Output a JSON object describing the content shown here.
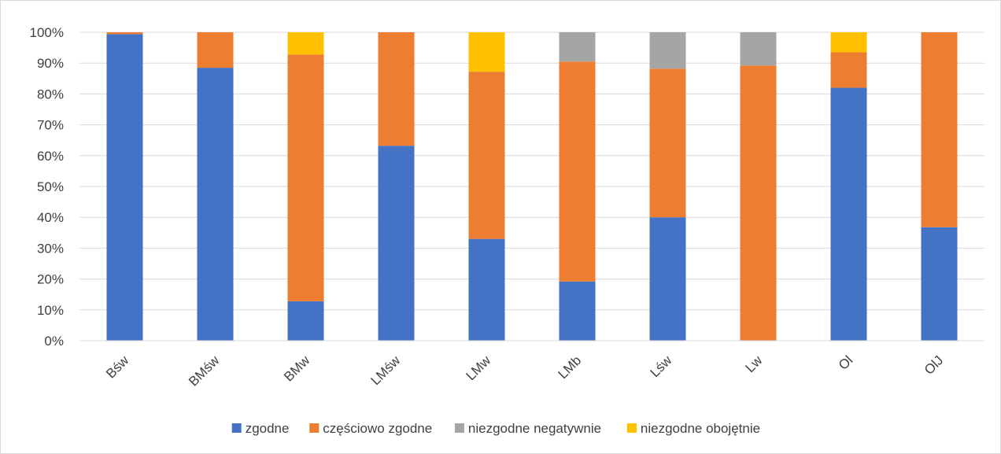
{
  "chart_data": {
    "type": "bar",
    "stacked": true,
    "normalized": true,
    "categories": [
      "Bśw",
      "BMśw",
      "BMw",
      "LMśw",
      "LMw",
      "LMb",
      "Lśw",
      "Lw",
      "Ol",
      "OlJ"
    ],
    "series": [
      {
        "name": "zgodne",
        "color": "#4472c4",
        "values": [
          0.994,
          0.885,
          0.128,
          0.632,
          0.33,
          0.192,
          0.4,
          0.0,
          0.82,
          0.368
        ]
      },
      {
        "name": "częściowo zgodne",
        "color": "#ed7d31",
        "values": [
          0.006,
          0.115,
          0.8,
          0.368,
          0.542,
          0.713,
          0.482,
          0.892,
          0.115,
          0.632
        ]
      },
      {
        "name": "niezgodne negatywnie",
        "color": "#a5a5a5",
        "values": [
          0.0,
          0.0,
          0.0,
          0.0,
          0.0,
          0.095,
          0.118,
          0.108,
          0.0,
          0.0
        ]
      },
      {
        "name": "niezgodne obojętnie",
        "color": "#ffc000",
        "values": [
          0.0,
          0.0,
          0.072,
          0.0,
          0.128,
          0.0,
          0.0,
          0.0,
          0.065,
          0.0
        ]
      }
    ],
    "ylim": [
      0,
      1
    ],
    "yticks": [
      "0%",
      "10%",
      "20%",
      "30%",
      "40%",
      "50%",
      "60%",
      "70%",
      "80%",
      "90%",
      "100%"
    ],
    "grid": true,
    "legend_position": "bottom",
    "title": "",
    "xlabel": "",
    "ylabel": ""
  }
}
